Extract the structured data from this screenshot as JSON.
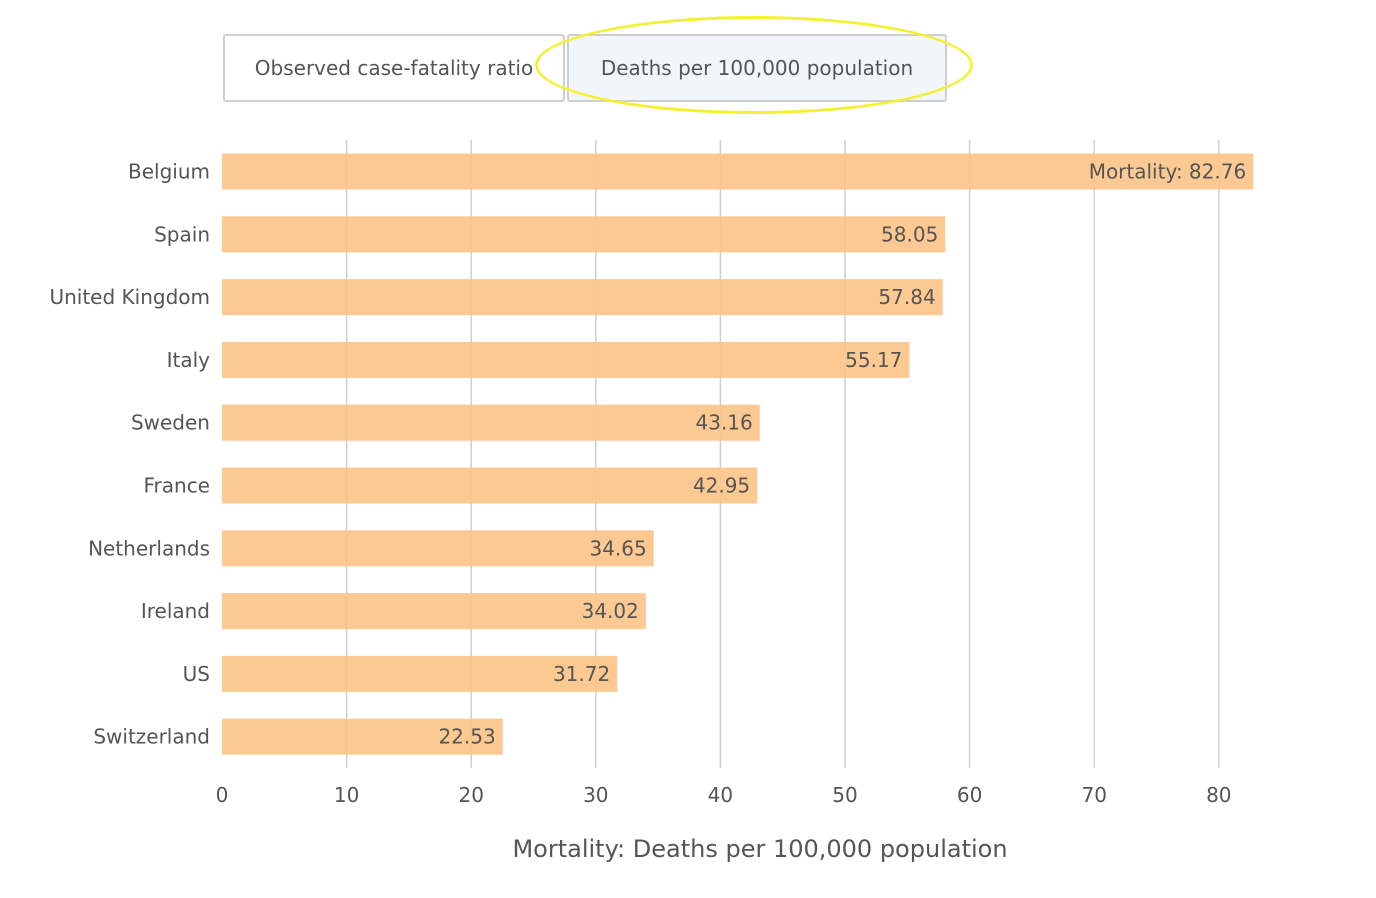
{
  "tabs": [
    {
      "label": "Observed case-fatality ratio"
    },
    {
      "label": "Deaths per 100,000 population"
    }
  ],
  "colors": {
    "bar": "#fcc48a",
    "grid": "#cfcfcf",
    "highlight": "#f4f135"
  },
  "chart_data": {
    "type": "bar",
    "orientation": "horizontal",
    "categories": [
      "Belgium",
      "Spain",
      "United Kingdom",
      "Italy",
      "Sweden",
      "France",
      "Netherlands",
      "Ireland",
      "US",
      "Switzerland"
    ],
    "values": [
      82.76,
      58.05,
      57.84,
      55.17,
      43.16,
      42.95,
      34.65,
      34.02,
      31.72,
      22.53
    ],
    "value_labels": [
      "Mortality: 82.76",
      "58.05",
      "57.84",
      "55.17",
      "43.16",
      "42.95",
      "34.65",
      "34.02",
      "31.72",
      "22.53"
    ],
    "xlabel": "Mortality: Deaths per 100,000 population",
    "ylabel": "",
    "xlim": [
      0,
      80
    ],
    "xticks": [
      0,
      10,
      20,
      30,
      40,
      50,
      60,
      70,
      80
    ],
    "grid": true
  }
}
